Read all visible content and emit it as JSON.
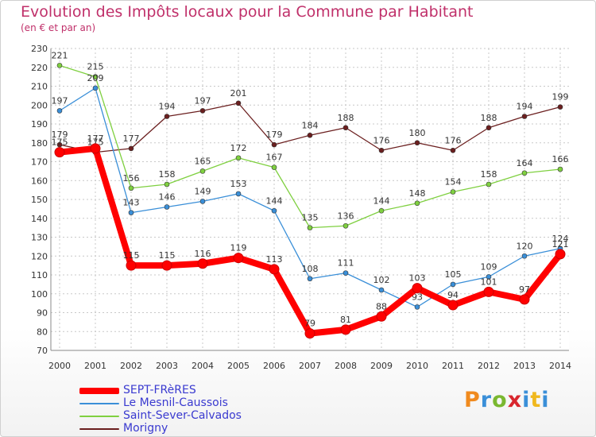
{
  "header": {
    "title": "Evolution des Impôts locaux pour la Commune par Habitant",
    "subtitle": "(en € et par an)"
  },
  "brand": {
    "text": "Proxiti"
  },
  "chart_data": {
    "type": "line",
    "x": [
      "2000",
      "2001",
      "2002",
      "2003",
      "2004",
      "2005",
      "2006",
      "2007",
      "2008",
      "2009",
      "2010",
      "2011",
      "2012",
      "2013",
      "2014"
    ],
    "ylim": [
      70,
      230
    ],
    "yticks": [
      70,
      80,
      90,
      100,
      110,
      120,
      130,
      140,
      150,
      160,
      170,
      180,
      190,
      200,
      210,
      220,
      230
    ],
    "grid": true,
    "legend_position": "bottom-left",
    "series": [
      {
        "name": "SEPT-FRèRES",
        "color": "#ff0000",
        "values": [
          175,
          177,
          115,
          115,
          116,
          119,
          113,
          79,
          81,
          88,
          103,
          94,
          101,
          97,
          121
        ]
      },
      {
        "name": "Le Mesnil-Caussois",
        "color": "#3a8fd8",
        "values": [
          197,
          209,
          143,
          146,
          149,
          153,
          144,
          108,
          111,
          102,
          93,
          105,
          109,
          120,
          124
        ]
      },
      {
        "name": "Saint-Sever-Calvados",
        "color": "#7fd040",
        "values": [
          221,
          215,
          156,
          158,
          165,
          172,
          167,
          135,
          136,
          144,
          148,
          154,
          158,
          164,
          166
        ]
      },
      {
        "name": "Morigny",
        "color": "#6b1f1f",
        "values": [
          179,
          175,
          177,
          194,
          197,
          201,
          179,
          184,
          188,
          176,
          180,
          176,
          188,
          194,
          199
        ]
      }
    ]
  }
}
